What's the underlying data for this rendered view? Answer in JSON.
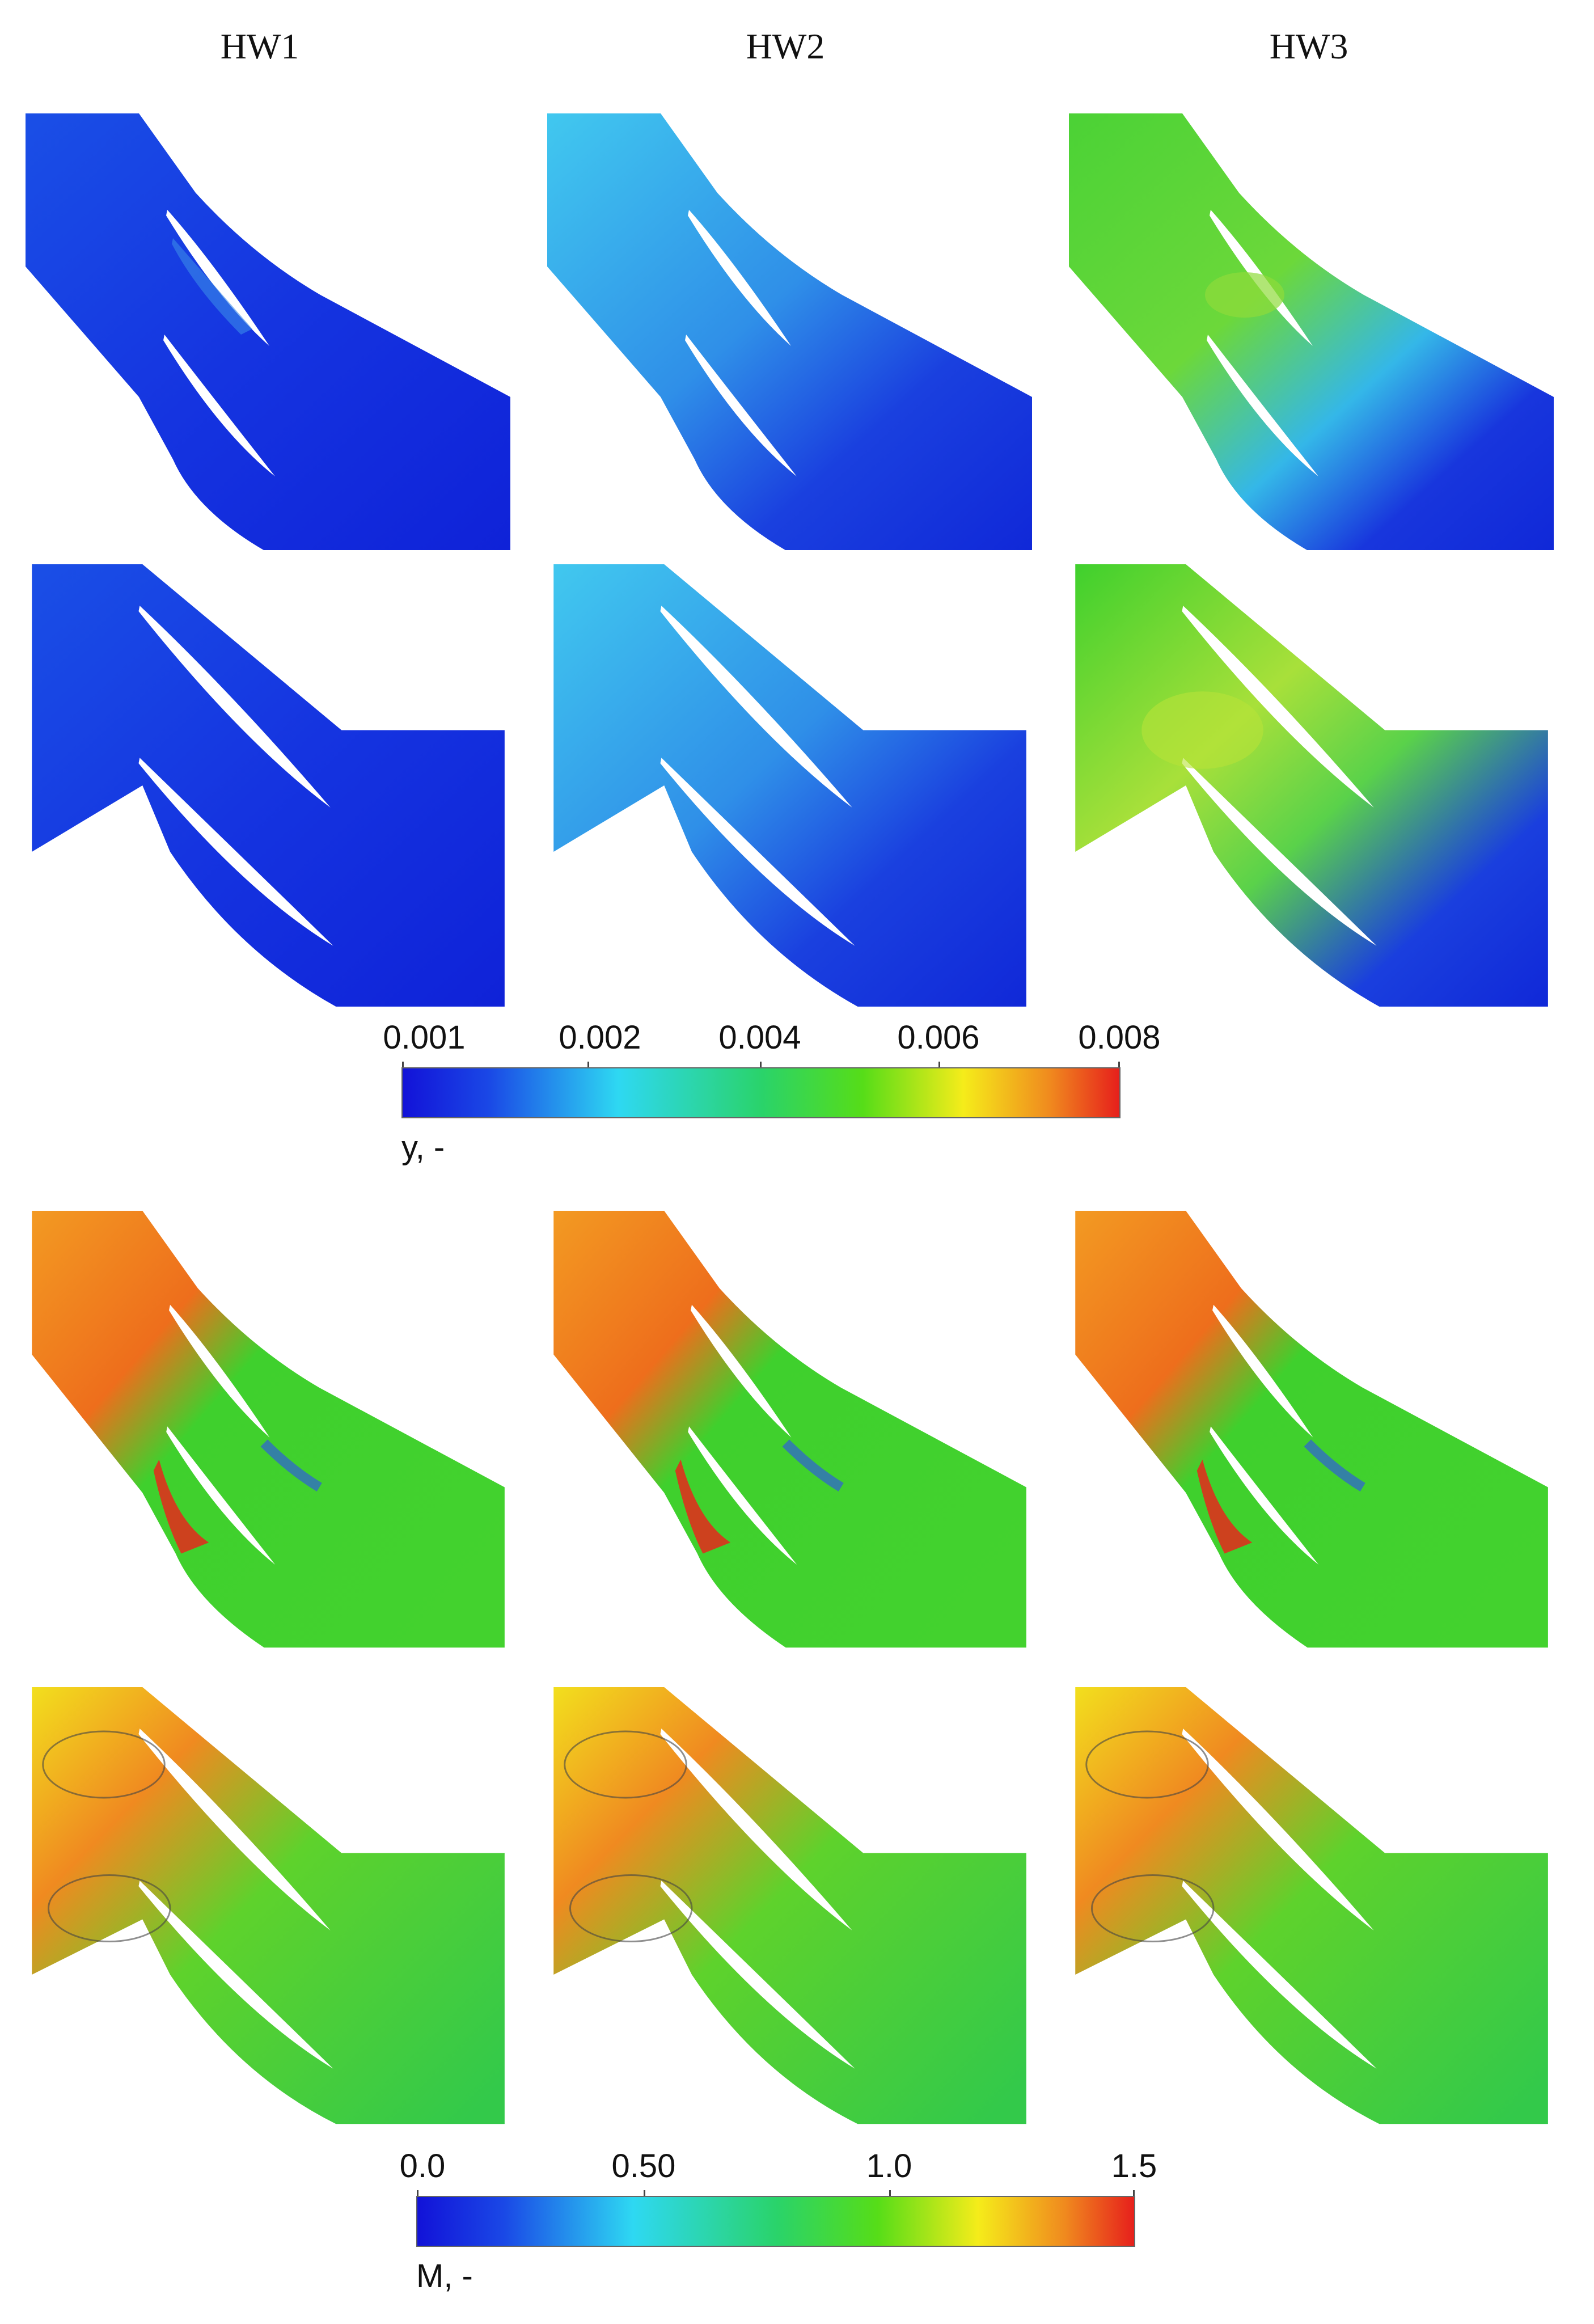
{
  "columns": [
    "HW1",
    "HW2",
    "HW3"
  ],
  "colorbar_y": {
    "ticks": [
      "0.001",
      "0.002",
      "0.004",
      "0.006",
      "0.008"
    ],
    "label": "y, -"
  },
  "colorbar_m": {
    "ticks": [
      "0.0",
      "0.50",
      "1.0",
      "1.5"
    ],
    "label": "M, -"
  },
  "colors": {
    "blue": "#1230e0",
    "cyan": "#3fd6f0",
    "green": "#39d22a",
    "yellow": "#f4ea1a",
    "orange": "#f0921e",
    "red": "#e8281c"
  }
}
